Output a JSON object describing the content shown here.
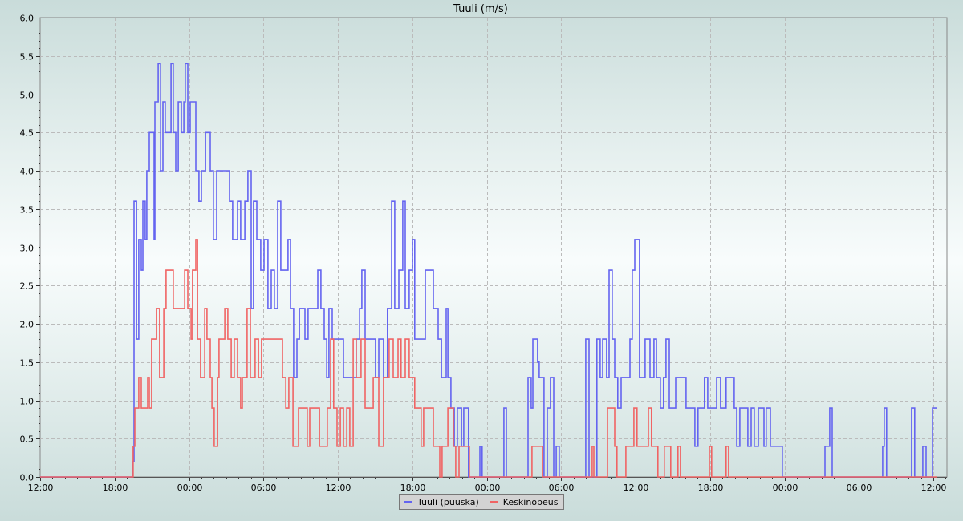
{
  "chart_data": {
    "type": "line",
    "step": true,
    "title": "Tuuli (m/s)",
    "xlabel": "",
    "ylabel": "",
    "ylim": [
      0,
      6.0
    ],
    "y_ticks": [
      "0.0",
      "0.5",
      "1.0",
      "1.5",
      "2.0",
      "2.5",
      "3.0",
      "3.5",
      "4.0",
      "4.5",
      "5.0",
      "5.5",
      "6.0"
    ],
    "x_range": [
      "12:00",
      "13:06"
    ],
    "x_ticks": [
      "12:00",
      "18:00",
      "00:00",
      "06:00",
      "12:00",
      "18:00",
      "00:00",
      "06:00",
      "12:00",
      "18:00",
      "00:00",
      "06:00",
      "12:00"
    ],
    "grid": true,
    "legend_position": "bottom-center",
    "series": [
      {
        "name": "Tuuli (puuska)",
        "color": "#6464f0",
        "points": [
          [
            "12:00",
            0
          ],
          [
            "19:26",
            0.2
          ],
          [
            "19:34",
            3.6
          ],
          [
            "19:46",
            1.8
          ],
          [
            "19:57",
            3.1
          ],
          [
            "20:09",
            2.7
          ],
          [
            "20:17",
            3.6
          ],
          [
            "20:28",
            3.1
          ],
          [
            "20:36",
            4.0
          ],
          [
            "20:48",
            4.5
          ],
          [
            "21:11",
            3.1
          ],
          [
            "21:15",
            4.9
          ],
          [
            "21:31",
            5.4
          ],
          [
            "21:42",
            4.0
          ],
          [
            "21:54",
            4.9
          ],
          [
            "22:05",
            4.5
          ],
          [
            "22:33",
            5.4
          ],
          [
            "22:44",
            4.5
          ],
          [
            "22:56",
            4.0
          ],
          [
            "23:08",
            4.9
          ],
          [
            "23:23",
            4.5
          ],
          [
            "23:35",
            4.9
          ],
          [
            "23:42",
            5.4
          ],
          [
            "23:54",
            4.5
          ],
          [
            "00:06",
            4.9
          ],
          [
            "00:33",
            4.0
          ],
          [
            "00:48",
            3.6
          ],
          [
            "01:00",
            4.0
          ],
          [
            "01:20",
            4.5
          ],
          [
            "01:43",
            4.0
          ],
          [
            "01:58",
            3.1
          ],
          [
            "02:14",
            4.0
          ],
          [
            "03:16",
            3.6
          ],
          [
            "03:31",
            3.1
          ],
          [
            "03:55",
            3.6
          ],
          [
            "04:10",
            3.1
          ],
          [
            "04:30",
            3.6
          ],
          [
            "04:45",
            4.0
          ],
          [
            "05:01",
            2.2
          ],
          [
            "05:12",
            3.6
          ],
          [
            "05:28",
            3.1
          ],
          [
            "05:47",
            2.7
          ],
          [
            "06:03",
            3.1
          ],
          [
            "06:22",
            2.2
          ],
          [
            "06:38",
            2.7
          ],
          [
            "06:53",
            2.2
          ],
          [
            "07:09",
            3.6
          ],
          [
            "07:24",
            2.7
          ],
          [
            "07:59",
            3.1
          ],
          [
            "08:11",
            2.2
          ],
          [
            "08:26",
            1.3
          ],
          [
            "08:42",
            1.8
          ],
          [
            "08:54",
            2.2
          ],
          [
            "09:21",
            1.8
          ],
          [
            "09:36",
            2.2
          ],
          [
            "10:23",
            2.7
          ],
          [
            "10:38",
            2.2
          ],
          [
            "10:54",
            1.8
          ],
          [
            "11:06",
            1.3
          ],
          [
            "11:17",
            2.2
          ],
          [
            "11:33",
            1.8
          ],
          [
            "12:27",
            1.3
          ],
          [
            "13:29",
            1.8
          ],
          [
            "13:45",
            2.2
          ],
          [
            "13:56",
            2.7
          ],
          [
            "14:12",
            1.8
          ],
          [
            "15:02",
            1.3
          ],
          [
            "15:18",
            1.8
          ],
          [
            "15:41",
            1.3
          ],
          [
            "16:00",
            2.2
          ],
          [
            "16:20",
            3.6
          ],
          [
            "16:35",
            2.2
          ],
          [
            "16:55",
            2.7
          ],
          [
            "17:14",
            3.6
          ],
          [
            "17:26",
            2.2
          ],
          [
            "17:45",
            2.7
          ],
          [
            "18:01",
            3.1
          ],
          [
            "18:12",
            1.8
          ],
          [
            "19:03",
            2.7
          ],
          [
            "19:42",
            2.2
          ],
          [
            "20:05",
            1.8
          ],
          [
            "20:21",
            1.3
          ],
          [
            "20:44",
            2.2
          ],
          [
            "20:52",
            1.3
          ],
          [
            "21:07",
            0.9
          ],
          [
            "21:23",
            0.4
          ],
          [
            "21:38",
            0.9
          ],
          [
            "21:58",
            0.4
          ],
          [
            "22:09",
            0.9
          ],
          [
            "22:32",
            0
          ],
          [
            "23:27",
            0.4
          ],
          [
            "23:38",
            0
          ],
          [
            "01:23",
            0.9
          ],
          [
            "01:35",
            0
          ],
          [
            "03:20",
            1.3
          ],
          [
            "03:35",
            0.9
          ],
          [
            "03:43",
            1.8
          ],
          [
            "04:06",
            1.5
          ],
          [
            "04:14",
            1.3
          ],
          [
            "04:37",
            0
          ],
          [
            "04:53",
            0.9
          ],
          [
            "05:08",
            1.3
          ],
          [
            "05:24",
            0
          ],
          [
            "05:36",
            0.4
          ],
          [
            "05:51",
            0
          ],
          [
            "07:59",
            1.8
          ],
          [
            "08:15",
            0
          ],
          [
            "08:53",
            1.8
          ],
          [
            "09:09",
            1.3
          ],
          [
            "09:21",
            1.8
          ],
          [
            "09:40",
            1.3
          ],
          [
            "09:52",
            2.7
          ],
          [
            "10:07",
            1.8
          ],
          [
            "10:19",
            1.3
          ],
          [
            "10:34",
            0.9
          ],
          [
            "10:50",
            1.3
          ],
          [
            "11:33",
            1.8
          ],
          [
            "11:44",
            2.7
          ],
          [
            "11:56",
            3.1
          ],
          [
            "12:19",
            1.3
          ],
          [
            "12:46",
            1.8
          ],
          [
            "13:10",
            1.3
          ],
          [
            "13:29",
            1.8
          ],
          [
            "13:41",
            1.3
          ],
          [
            "14:00",
            0.9
          ],
          [
            "14:15",
            1.3
          ],
          [
            "14:27",
            1.8
          ],
          [
            "14:43",
            0.9
          ],
          [
            "15:14",
            1.3
          ],
          [
            "16:04",
            0.9
          ],
          [
            "16:47",
            0.4
          ],
          [
            "17:02",
            0.9
          ],
          [
            "17:33",
            1.3
          ],
          [
            "17:49",
            0.9
          ],
          [
            "18:32",
            1.3
          ],
          [
            "18:51",
            0.9
          ],
          [
            "19:18",
            1.3
          ],
          [
            "19:57",
            0.9
          ],
          [
            "20:09",
            0.4
          ],
          [
            "20:24",
            0.9
          ],
          [
            "21:03",
            0.4
          ],
          [
            "21:19",
            0.9
          ],
          [
            "21:34",
            0.4
          ],
          [
            "21:54",
            0.9
          ],
          [
            "22:21",
            0.4
          ],
          [
            "22:32",
            0.9
          ],
          [
            "22:52",
            0.4
          ],
          [
            "23:50",
            0
          ],
          [
            "03:16",
            0.4
          ],
          [
            "03:39",
            0.9
          ],
          [
            "03:51",
            0
          ],
          [
            "07:55",
            0.4
          ],
          [
            "08:03",
            0.9
          ],
          [
            "08:14",
            0
          ],
          [
            "10:15",
            0.9
          ],
          [
            "10:30",
            0
          ],
          [
            "11:09",
            0.4
          ],
          [
            "11:25",
            0
          ],
          [
            "11:56",
            0.9
          ],
          [
            "12:19",
            0.9
          ]
        ]
      },
      {
        "name": "Keskinopeus",
        "color": "#f06464",
        "points": [
          [
            "12:00",
            0
          ],
          [
            "19:30",
            0.4
          ],
          [
            "19:38",
            0.9
          ],
          [
            "19:57",
            1.3
          ],
          [
            "20:09",
            0.9
          ],
          [
            "20:40",
            1.3
          ],
          [
            "20:48",
            0.9
          ],
          [
            "20:59",
            1.8
          ],
          [
            "21:23",
            2.2
          ],
          [
            "21:38",
            1.3
          ],
          [
            "21:58",
            2.2
          ],
          [
            "22:09",
            2.7
          ],
          [
            "22:44",
            2.2
          ],
          [
            "23:39",
            2.7
          ],
          [
            "23:54",
            2.2
          ],
          [
            "00:10",
            1.8
          ],
          [
            "00:17",
            2.7
          ],
          [
            "00:33",
            3.1
          ],
          [
            "00:41",
            1.8
          ],
          [
            "00:56",
            1.3
          ],
          [
            "01:16",
            2.2
          ],
          [
            "01:27",
            1.8
          ],
          [
            "01:43",
            1.3
          ],
          [
            "01:51",
            0.9
          ],
          [
            "02:02",
            0.4
          ],
          [
            "02:18",
            1.3
          ],
          [
            "02:25",
            1.8
          ],
          [
            "02:53",
            2.2
          ],
          [
            "03:08",
            1.8
          ],
          [
            "03:24",
            1.3
          ],
          [
            "03:39",
            1.8
          ],
          [
            "03:55",
            1.3
          ],
          [
            "04:10",
            0.9
          ],
          [
            "04:18",
            1.3
          ],
          [
            "04:41",
            2.2
          ],
          [
            "04:57",
            1.3
          ],
          [
            "05:20",
            1.8
          ],
          [
            "05:36",
            1.3
          ],
          [
            "05:51",
            1.8
          ],
          [
            "07:32",
            1.3
          ],
          [
            "07:48",
            0.9
          ],
          [
            "08:03",
            1.3
          ],
          [
            "08:23",
            0.4
          ],
          [
            "08:50",
            0.9
          ],
          [
            "09:32",
            0.4
          ],
          [
            "09:44",
            0.9
          ],
          [
            "10:31",
            0.4
          ],
          [
            "11:09",
            0.9
          ],
          [
            "11:25",
            1.8
          ],
          [
            "11:40",
            0.9
          ],
          [
            "11:56",
            0.4
          ],
          [
            "12:12",
            0.9
          ],
          [
            "12:27",
            0.4
          ],
          [
            "12:43",
            0.9
          ],
          [
            "12:58",
            0.4
          ],
          [
            "13:14",
            1.8
          ],
          [
            "13:29",
            1.3
          ],
          [
            "13:52",
            1.8
          ],
          [
            "14:12",
            0.9
          ],
          [
            "14:51",
            1.3
          ],
          [
            "15:18",
            0.4
          ],
          [
            "15:41",
            1.3
          ],
          [
            "16:08",
            1.8
          ],
          [
            "16:28",
            1.3
          ],
          [
            "16:51",
            1.8
          ],
          [
            "17:06",
            1.3
          ],
          [
            "17:26",
            1.8
          ],
          [
            "17:45",
            1.3
          ],
          [
            "18:12",
            0.9
          ],
          [
            "18:43",
            0.4
          ],
          [
            "18:55",
            0.9
          ],
          [
            "19:42",
            0.4
          ],
          [
            "20:13",
            0
          ],
          [
            "20:24",
            0.4
          ],
          [
            "20:52",
            0.9
          ],
          [
            "21:19",
            0.4
          ],
          [
            "21:30",
            0
          ],
          [
            "21:46",
            0.4
          ],
          [
            "22:36",
            0
          ],
          [
            "03:39",
            0.4
          ],
          [
            "04:30",
            0
          ],
          [
            "08:30",
            0.4
          ],
          [
            "08:38",
            0
          ],
          [
            "09:44",
            0.9
          ],
          [
            "10:19",
            0.4
          ],
          [
            "10:30",
            0
          ],
          [
            "11:13",
            0.4
          ],
          [
            "11:52",
            0.9
          ],
          [
            "12:07",
            0.4
          ],
          [
            "13:02",
            0.9
          ],
          [
            "13:17",
            0.4
          ],
          [
            "13:48",
            0
          ],
          [
            "14:19",
            0.4
          ],
          [
            "14:50",
            0
          ],
          [
            "15:25",
            0.4
          ],
          [
            "15:37",
            0
          ],
          [
            "17:57",
            0.4
          ],
          [
            "18:08",
            0
          ],
          [
            "19:18",
            0.4
          ],
          [
            "19:30",
            0
          ],
          [
            "12:19",
            0
          ]
        ]
      }
    ]
  }
}
